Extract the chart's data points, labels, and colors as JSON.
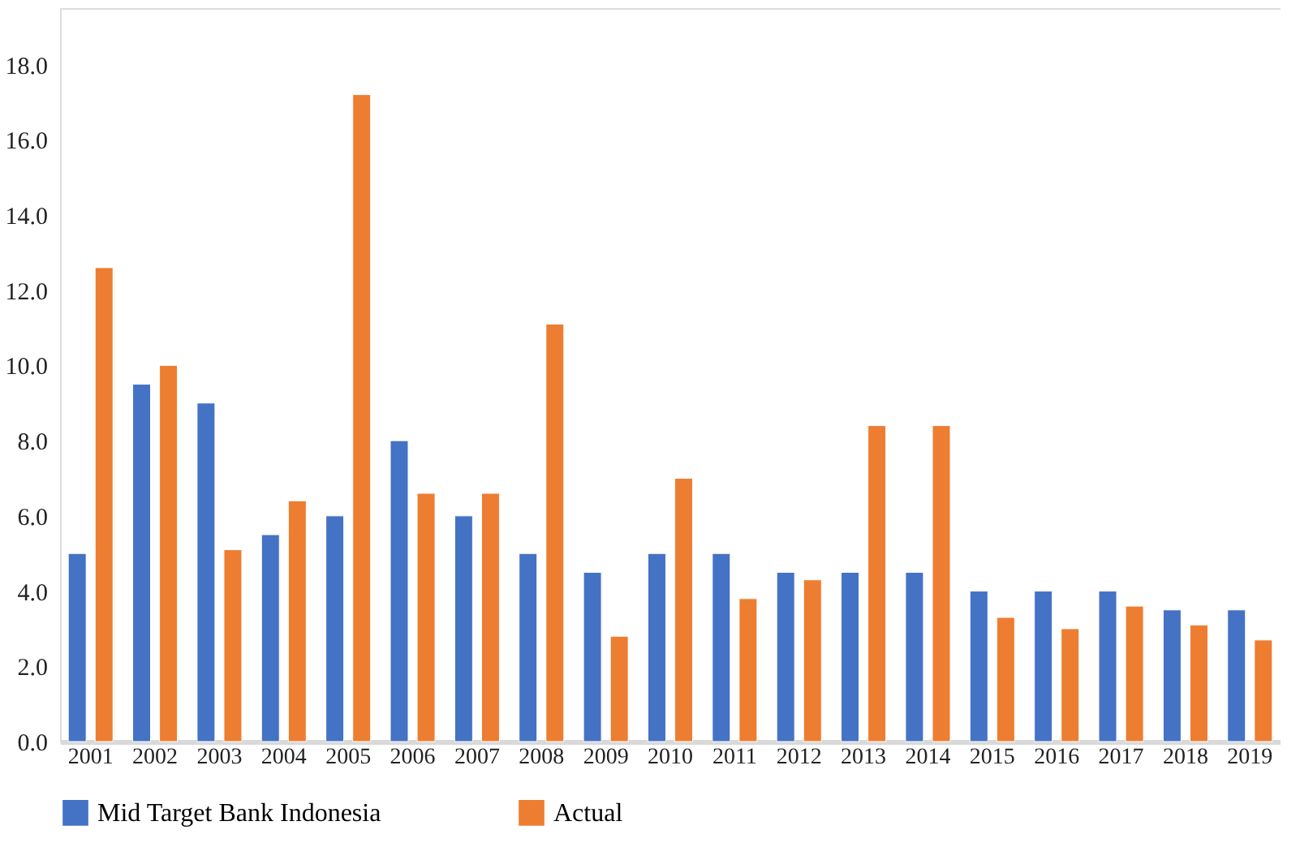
{
  "chart_data": {
    "type": "bar",
    "categories": [
      "2001",
      "2002",
      "2003",
      "2004",
      "2005",
      "2006",
      "2007",
      "2008",
      "2009",
      "2010",
      "2011",
      "2012",
      "2013",
      "2014",
      "2015",
      "2016",
      "2017",
      "2018",
      "2019"
    ],
    "series": [
      {
        "name": "Mid Target Bank Indonesia",
        "color": "#4472c4",
        "values": [
          5.0,
          9.5,
          9.0,
          5.5,
          6.0,
          8.0,
          6.0,
          5.0,
          4.5,
          5.0,
          5.0,
          4.5,
          4.5,
          4.5,
          4.0,
          4.0,
          4.0,
          3.5,
          3.5
        ]
      },
      {
        "name": "Actual",
        "color": "#ed7d31",
        "values": [
          12.6,
          10.0,
          5.1,
          6.4,
          17.2,
          6.6,
          6.6,
          11.1,
          2.8,
          7.0,
          3.8,
          4.3,
          8.4,
          8.4,
          3.3,
          3.0,
          3.6,
          3.1,
          2.7
        ]
      }
    ],
    "ylim": [
      0,
      19.5
    ],
    "yticks": [
      {
        "value": 0,
        "label": "0.0"
      },
      {
        "value": 2,
        "label": "2.0"
      },
      {
        "value": 4,
        "label": "4.0"
      },
      {
        "value": 6,
        "label": "6.0"
      },
      {
        "value": 8,
        "label": "8.0"
      },
      {
        "value": 10,
        "label": "10.0"
      },
      {
        "value": 12,
        "label": "12.0"
      },
      {
        "value": 14,
        "label": "14.0"
      },
      {
        "value": 16,
        "label": "16.0"
      },
      {
        "value": 18,
        "label": "18.0"
      }
    ],
    "grid": false,
    "legend": "bottom"
  }
}
